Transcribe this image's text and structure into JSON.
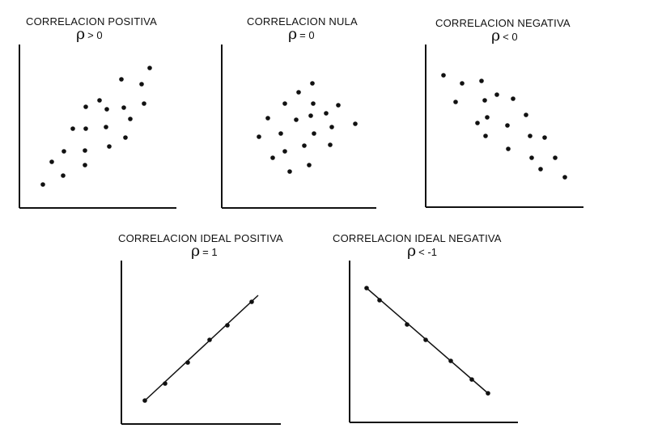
{
  "panels": [
    {
      "id": "pos",
      "title": "CORRELACION POSITIVA",
      "rho_symbol": "ρ",
      "rho_expr": "> 0",
      "points": [
        [
          53,
          228
        ],
        [
          64,
          200
        ],
        [
          78,
          217
        ],
        [
          79,
          187
        ],
        [
          90,
          159
        ],
        [
          105,
          186
        ],
        [
          105,
          204
        ],
        [
          106,
          159
        ],
        [
          106,
          132
        ],
        [
          123,
          124
        ],
        [
          131,
          157
        ],
        [
          132,
          135
        ],
        [
          135,
          181
        ],
        [
          150,
          98
        ],
        [
          153,
          133
        ],
        [
          155,
          170
        ],
        [
          161,
          147
        ],
        [
          175,
          104
        ],
        [
          178,
          128
        ],
        [
          185,
          84
        ]
      ]
    },
    {
      "id": "nula",
      "title": "CORRELACION NULA",
      "rho_symbol": "ρ",
      "rho_expr": "= 0",
      "points": [
        [
          320,
          169
        ],
        [
          331,
          146
        ],
        [
          337,
          195
        ],
        [
          347,
          165
        ],
        [
          352,
          128
        ],
        [
          352,
          187
        ],
        [
          358,
          212
        ],
        [
          366,
          148
        ],
        [
          369,
          114
        ],
        [
          376,
          180
        ],
        [
          382,
          204
        ],
        [
          384,
          143
        ],
        [
          386,
          103
        ],
        [
          387,
          128
        ],
        [
          388,
          165
        ],
        [
          403,
          140
        ],
        [
          408,
          179
        ],
        [
          410,
          157
        ],
        [
          418,
          130
        ],
        [
          439,
          153
        ]
      ]
    },
    {
      "id": "neg",
      "title": "CORRELACION NEGATIVA",
      "rho_symbol": "ρ",
      "rho_expr": "< 0",
      "points": [
        [
          548,
          93
        ],
        [
          563,
          126
        ],
        [
          571,
          103
        ],
        [
          590,
          152
        ],
        [
          595,
          100
        ],
        [
          599,
          124
        ],
        [
          600,
          168
        ],
        [
          602,
          145
        ],
        [
          614,
          117
        ],
        [
          627,
          155
        ],
        [
          628,
          184
        ],
        [
          634,
          122
        ],
        [
          650,
          142
        ],
        [
          655,
          168
        ],
        [
          657,
          195
        ],
        [
          673,
          170
        ],
        [
          686,
          195
        ],
        [
          668,
          209
        ],
        [
          698,
          219
        ]
      ]
    },
    {
      "id": "ideal-pos",
      "title": "CORRELACION IDEAL POSITIVA",
      "rho_symbol": "ρ",
      "rho_expr": "= 1",
      "points": [
        [
          179,
          495
        ],
        [
          204,
          474
        ],
        [
          232,
          448
        ],
        [
          259,
          420
        ],
        [
          281,
          402
        ],
        [
          311,
          373
        ]
      ]
    },
    {
      "id": "ideal-neg",
      "title": "CORRELACION IDEAL NEGATIVA",
      "rho_symbol": "ρ",
      "rho_expr": "< -1",
      "points": [
        [
          453,
          356
        ],
        [
          469,
          371
        ],
        [
          503,
          401
        ],
        [
          526,
          420
        ],
        [
          557,
          446
        ],
        [
          583,
          469
        ],
        [
          603,
          486
        ]
      ]
    }
  ]
}
